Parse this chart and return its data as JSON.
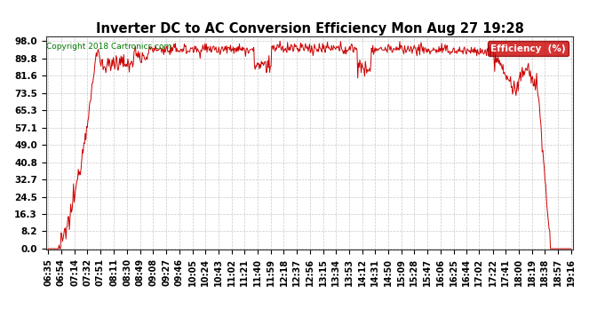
{
  "title": "Inverter DC to AC Conversion Efficiency Mon Aug 27 19:28",
  "copyright": "Copyright 2018 Cartronics.com",
  "legend_label": "Efficiency  (%)",
  "legend_bg": "#cc0000",
  "legend_text_color": "#ffffff",
  "line_color": "#cc0000",
  "bg_color": "#ffffff",
  "plot_bg_color": "#ffffff",
  "grid_color": "#bbbbbb",
  "title_color": "#000000",
  "y_ticks": [
    0.0,
    8.2,
    16.3,
    24.5,
    32.7,
    40.8,
    49.0,
    57.1,
    65.3,
    73.5,
    81.6,
    89.8,
    98.0
  ],
  "x_tick_labels": [
    "06:35",
    "06:54",
    "07:14",
    "07:32",
    "07:51",
    "08:11",
    "08:30",
    "08:49",
    "09:08",
    "09:27",
    "09:46",
    "10:05",
    "10:24",
    "10:43",
    "11:02",
    "11:21",
    "11:40",
    "11:59",
    "12:18",
    "12:37",
    "12:56",
    "13:15",
    "13:34",
    "13:53",
    "14:12",
    "14:31",
    "14:50",
    "15:09",
    "15:28",
    "15:47",
    "16:06",
    "16:25",
    "16:44",
    "17:02",
    "17:22",
    "17:41",
    "18:00",
    "18:19",
    "18:38",
    "18:57",
    "19:16"
  ],
  "ylim": [
    0,
    98
  ],
  "line_width": 0.7,
  "title_fontsize": 10.5,
  "copyright_color": "#007700",
  "tick_fontsize": 7,
  "ytick_fontsize": 7.5
}
